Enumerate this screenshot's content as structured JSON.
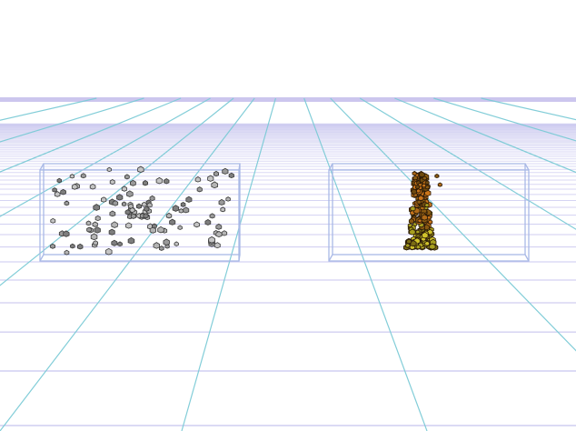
{
  "scene": {
    "description_visible_text": "",
    "background_color": "#ffffff",
    "floor": {
      "horizontal_line_color": "#b7b4ea",
      "horizon_band_color": "#c6c0ec",
      "converging_line_color": "#7ccbd6"
    },
    "boxes": [
      {
        "name": "left-container-box",
        "edge_color": "#a9b9e6"
      },
      {
        "name": "right-container-box",
        "edge_color": "#a9b9e6"
      }
    ],
    "particle_groups": [
      {
        "name": "dispersed-gray-particles",
        "colors": [
          "#9a9a9a",
          "#b4b4b4",
          "#7e7e7e",
          "#c4c4c4"
        ],
        "outline": "#3a3a3a",
        "spread": "dispersed"
      },
      {
        "name": "settled-fire-particles",
        "colors": [
          "#8a5a12",
          "#b06a18",
          "#6e4a10",
          "#a8a020",
          "#cfc22a",
          "#7a6c14",
          "#c8741a"
        ],
        "outline": "#2a1a08",
        "spread": "clustered-column"
      }
    ]
  }
}
